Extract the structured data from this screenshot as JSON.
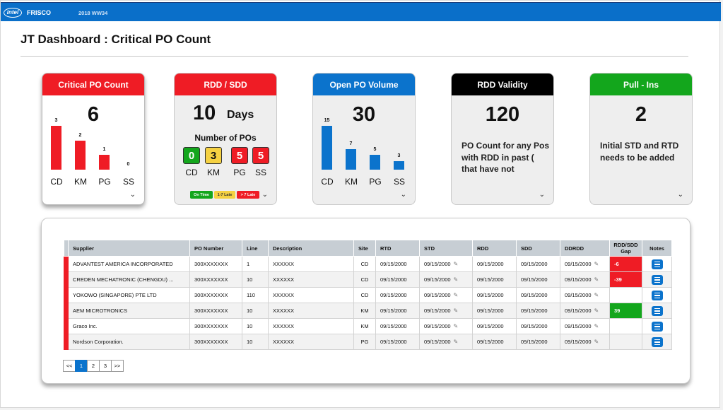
{
  "header": {
    "brand": "FRISCO",
    "week": "2018 WW34",
    "logo": "intel"
  },
  "page_title": "JT Dashboard : Critical PO Count",
  "cards": {
    "critical": {
      "title": "Critical PO Count",
      "value": "6",
      "bars": [
        {
          "label": "CD",
          "value": 3
        },
        {
          "label": "KM",
          "value": 2
        },
        {
          "label": "PG",
          "value": 1
        },
        {
          "label": "SS",
          "value": 0
        }
      ],
      "bar_color": "#ef1c25"
    },
    "rdd": {
      "title": "RDD / SDD",
      "value": "10",
      "unit": "Days",
      "subtitle": "Number of POs",
      "sites": [
        {
          "label": "CD",
          "value": "0",
          "color": "#13a61c"
        },
        {
          "label": "KM",
          "value": "3",
          "color": "#f5d142"
        },
        {
          "label": "PG",
          "value": "5",
          "color": "#ef1c25"
        },
        {
          "label": "SS",
          "value": "5",
          "color": "#ef1c25"
        }
      ],
      "legend": [
        {
          "label": "On Time",
          "color": "#13a61c"
        },
        {
          "label": "1-7 Late",
          "color": "#f5d142"
        },
        {
          "label": "> 7 Late",
          "color": "#ef1c25"
        }
      ]
    },
    "open": {
      "title": "Open PO Volume",
      "value": "30",
      "bars": [
        {
          "label": "CD",
          "value": 15
        },
        {
          "label": "KM",
          "value": 7
        },
        {
          "label": "PG",
          "value": 5
        },
        {
          "label": "SS",
          "value": 3
        }
      ],
      "bar_color": "#0b73cc"
    },
    "validity": {
      "title": "RDD Validity",
      "value": "120",
      "text": "PO Count for any Pos with RDD in past ( that have not"
    },
    "pull": {
      "title": "Pull - Ins",
      "value": "2",
      "text": "Initial STD and RTD needs to be added"
    }
  },
  "table": {
    "columns": [
      "Supplier",
      "PO Number",
      "Line",
      "Description",
      "Site",
      "RTD",
      "STD",
      "RDD",
      "SDD",
      "DDRDD",
      "RDD/SDD Gap",
      "Notes"
    ],
    "rows": [
      {
        "supplier": "ADVANTEST AMERICA INCORPORATED",
        "po": "300XXXXXXX",
        "line": "1",
        "desc": "XXXXXX",
        "site": "CD",
        "rtd": "09/15/2000",
        "std": "09/15/2000",
        "rdd": "09/15/2000",
        "sdd": "09/15/2000",
        "ddrdd": "09/15/2000",
        "gap": "-6",
        "gap_status": "red"
      },
      {
        "supplier": "CREDEN MECHATRONIC (CHENGDU) ...",
        "po": "300XXXXXXX",
        "line": "10",
        "desc": "XXXXXX",
        "site": "CD",
        "rtd": "09/15/2000",
        "std": "09/15/2000",
        "rdd": "09/15/2000",
        "sdd": "09/15/2000",
        "ddrdd": "09/15/2000",
        "gap": "-39",
        "gap_status": "red"
      },
      {
        "supplier": "YOKOWO (SINGAPORE) PTE LTD",
        "po": "300XXXXXXX",
        "line": "110",
        "desc": "XXXXXX",
        "site": "CD",
        "rtd": "09/15/2000",
        "std": "09/15/2000",
        "rdd": "09/15/2000",
        "sdd": "09/15/2000",
        "ddrdd": "09/15/2000",
        "gap": "",
        "gap_status": "none"
      },
      {
        "supplier": "AEM MICROTRONICS",
        "po": "300XXXXXXX",
        "line": "10",
        "desc": "XXXXXX",
        "site": "KM",
        "rtd": "09/15/2000",
        "std": "09/15/2000",
        "rdd": "09/15/2000",
        "sdd": "09/15/2000",
        "ddrdd": "09/15/2000",
        "gap": "39",
        "gap_status": "green"
      },
      {
        "supplier": "Graco Inc.",
        "po": "300XXXXXXX",
        "line": "10",
        "desc": "XXXXXX",
        "site": "KM",
        "rtd": "09/15/2000",
        "std": "09/15/2000",
        "rdd": "09/15/2000",
        "sdd": "09/15/2000",
        "ddrdd": "09/15/2000",
        "gap": "",
        "gap_status": "none"
      },
      {
        "supplier": "Nordson Corporation.",
        "po": "300XXXXXXX",
        "line": "10",
        "desc": "XXXXXX",
        "site": "PG",
        "rtd": "09/15/2000",
        "std": "09/15/2000",
        "rdd": "09/15/2000",
        "sdd": "09/15/2000",
        "ddrdd": "09/15/2000",
        "gap": "",
        "gap_status": "none"
      }
    ]
  },
  "pager": {
    "prev": "<<",
    "pages": [
      "1",
      "2",
      "3"
    ],
    "active": "1",
    "next": ">>"
  }
}
